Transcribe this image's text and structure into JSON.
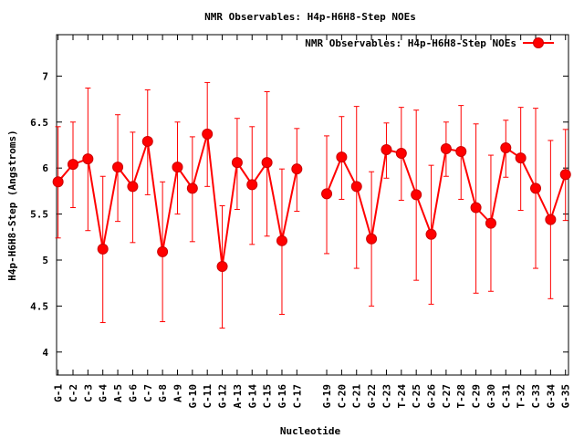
{
  "chart_data": {
    "type": "line",
    "title": "NMR Observables: H4p-H6H8-Step NOEs",
    "xlabel": "Nucleotide",
    "ylabel": "H4p-H6H8-Step (Angstroms)",
    "ylim": [
      3.75,
      7.45
    ],
    "yticks": [
      "4",
      "4.5",
      "5",
      "5.5",
      "6",
      "6.5",
      "7"
    ],
    "yticks_values": [
      4,
      4.5,
      5,
      5.5,
      6,
      6.5,
      7
    ],
    "grid": false,
    "legend_position": "top-right",
    "series_color": "#ff0000",
    "series": [
      {
        "name": "NMR Observables: H4p-H6H8-Step NOEs",
        "points": [
          {
            "label": "G-1",
            "index": 1,
            "y": 5.85,
            "low": 5.24,
            "high": 6.45
          },
          {
            "label": "C-2",
            "index": 2,
            "y": 6.04,
            "low": 5.57,
            "high": 6.5
          },
          {
            "label": "C-3",
            "index": 3,
            "y": 6.1,
            "low": 5.32,
            "high": 6.87
          },
          {
            "label": "G-4",
            "index": 4,
            "y": 5.12,
            "low": 4.32,
            "high": 5.91
          },
          {
            "label": "A-5",
            "index": 5,
            "y": 6.01,
            "low": 5.42,
            "high": 6.58
          },
          {
            "label": "G-6",
            "index": 6,
            "y": 5.8,
            "low": 5.19,
            "high": 6.39
          },
          {
            "label": "C-7",
            "index": 7,
            "y": 6.29,
            "low": 5.71,
            "high": 6.85
          },
          {
            "label": "G-8",
            "index": 8,
            "y": 5.09,
            "low": 4.33,
            "high": 5.85
          },
          {
            "label": "A-9",
            "index": 9,
            "y": 6.01,
            "low": 5.5,
            "high": 6.5
          },
          {
            "label": "G-10",
            "index": 10,
            "y": 5.78,
            "low": 5.2,
            "high": 6.34
          },
          {
            "label": "C-11",
            "index": 11,
            "y": 6.37,
            "low": 5.8,
            "high": 6.93
          },
          {
            "label": "G-12",
            "index": 12,
            "y": 4.93,
            "low": 4.26,
            "high": 5.59
          },
          {
            "label": "A-13",
            "index": 13,
            "y": 6.06,
            "low": 5.55,
            "high": 6.54
          },
          {
            "label": "G-14",
            "index": 14,
            "y": 5.82,
            "low": 5.17,
            "high": 6.45
          },
          {
            "label": "C-15",
            "index": 15,
            "y": 6.06,
            "low": 5.26,
            "high": 6.83
          },
          {
            "label": "G-16",
            "index": 16,
            "y": 5.21,
            "low": 4.41,
            "high": 5.99
          },
          {
            "label": "C-17",
            "index": 17,
            "y": 5.99,
            "low": 5.53,
            "high": 6.43
          }
        ]
      },
      {
        "name": "",
        "points": [
          {
            "label": "G-19",
            "index": 19,
            "y": 5.72,
            "low": 5.07,
            "high": 6.35
          },
          {
            "label": "C-20",
            "index": 20,
            "y": 6.12,
            "low": 5.66,
            "high": 6.56
          },
          {
            "label": "C-21",
            "index": 21,
            "y": 5.8,
            "low": 4.91,
            "high": 6.67
          },
          {
            "label": "G-22",
            "index": 22,
            "y": 5.23,
            "low": 4.5,
            "high": 5.96
          },
          {
            "label": "C-23",
            "index": 23,
            "y": 6.2,
            "low": 5.89,
            "high": 6.49
          },
          {
            "label": "T-24",
            "index": 24,
            "y": 6.16,
            "low": 5.65,
            "high": 6.66
          },
          {
            "label": "C-25",
            "index": 25,
            "y": 5.71,
            "low": 4.78,
            "high": 6.63
          },
          {
            "label": "G-26",
            "index": 26,
            "y": 5.28,
            "low": 4.52,
            "high": 6.03
          },
          {
            "label": "C-27",
            "index": 27,
            "y": 6.21,
            "low": 5.91,
            "high": 6.5
          },
          {
            "label": "T-28",
            "index": 28,
            "y": 6.18,
            "low": 5.66,
            "high": 6.68
          },
          {
            "label": "C-29",
            "index": 29,
            "y": 5.57,
            "low": 4.64,
            "high": 6.48
          },
          {
            "label": "G-30",
            "index": 30,
            "y": 5.4,
            "low": 4.66,
            "high": 6.14
          },
          {
            "label": "C-31",
            "index": 31,
            "y": 6.22,
            "low": 5.9,
            "high": 6.52
          },
          {
            "label": "T-32",
            "index": 32,
            "y": 6.11,
            "low": 5.54,
            "high": 6.66
          },
          {
            "label": "C-33",
            "index": 33,
            "y": 5.78,
            "low": 4.91,
            "high": 6.65
          },
          {
            "label": "G-34",
            "index": 34,
            "y": 5.44,
            "low": 4.58,
            "high": 6.3
          },
          {
            "label": "G-35",
            "index": 35,
            "y": 5.93,
            "low": 5.43,
            "high": 6.42
          }
        ]
      }
    ]
  }
}
